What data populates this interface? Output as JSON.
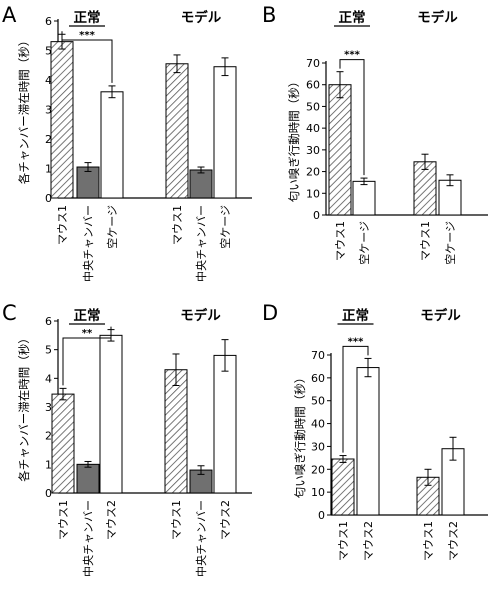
{
  "chart_data": [
    {
      "panel": "A",
      "type": "bar",
      "groups": [
        "正常",
        "モデル"
      ],
      "categories": [
        "マウス1",
        "中央チャンバー",
        "空ケージ"
      ],
      "series": [
        {
          "group": "正常",
          "values": [
            5.3,
            1.05,
            3.6
          ],
          "errors": [
            0.25,
            0.15,
            0.2
          ]
        },
        {
          "group": "モデル",
          "values": [
            4.55,
            0.95,
            4.45
          ],
          "errors": [
            0.3,
            0.1,
            0.3
          ]
        }
      ],
      "ylabel": "各チャンバー滞在時間（秒）",
      "ylim": [
        0,
        6
      ],
      "yticks": [
        0,
        1,
        2,
        3,
        4,
        5,
        6
      ],
      "significance": {
        "group": "正常",
        "from": 0,
        "to": 2,
        "label": "***"
      }
    },
    {
      "panel": "B",
      "type": "bar",
      "groups": [
        "正常",
        "モデル"
      ],
      "categories": [
        "マウス1",
        "空ケージ"
      ],
      "series": [
        {
          "group": "正常",
          "values": [
            60,
            15.5
          ],
          "errors": [
            6,
            1.5
          ]
        },
        {
          "group": "モデル",
          "values": [
            24.5,
            16
          ],
          "errors": [
            3.5,
            2.5
          ]
        }
      ],
      "ylabel": "匂い嗅ぎ行動時間（秒）",
      "ylim": [
        0,
        70
      ],
      "yticks": [
        0,
        10,
        20,
        30,
        40,
        50,
        60,
        70
      ],
      "significance": {
        "group": "正常",
        "from": 0,
        "to": 1,
        "label": "***"
      }
    },
    {
      "panel": "C",
      "type": "bar",
      "groups": [
        "正常",
        "モデル"
      ],
      "categories": [
        "マウス1",
        "中央チャンバー",
        "マウス2"
      ],
      "series": [
        {
          "group": "正常",
          "values": [
            3.45,
            1.0,
            5.5
          ],
          "errors": [
            0.2,
            0.1,
            0.2
          ]
        },
        {
          "group": "モデル",
          "values": [
            4.3,
            0.8,
            4.8
          ],
          "errors": [
            0.55,
            0.15,
            0.55
          ]
        }
      ],
      "ylabel": "各チャンバー滞在時間（秒）",
      "ylim": [
        0,
        6
      ],
      "yticks": [
        0,
        1,
        2,
        3,
        4,
        5,
        6
      ],
      "significance": {
        "group": "正常",
        "from": 0,
        "to": 2,
        "label": "**"
      }
    },
    {
      "panel": "D",
      "type": "bar",
      "groups": [
        "正常",
        "モデル"
      ],
      "categories": [
        "マウス1",
        "マウス2"
      ],
      "series": [
        {
          "group": "正常",
          "values": [
            24.5,
            64.5
          ],
          "errors": [
            1.5,
            4
          ]
        },
        {
          "group": "モデル",
          "values": [
            16.5,
            29
          ],
          "errors": [
            3.5,
            5
          ]
        }
      ],
      "ylabel": "匂い嗅ぎ行動時間（秒）",
      "ylim": [
        0,
        70
      ],
      "yticks": [
        0,
        10,
        20,
        30,
        40,
        50,
        60,
        70
      ],
      "significance": {
        "group": "正常",
        "from": 0,
        "to": 1,
        "label": "***"
      }
    }
  ],
  "colors": {
    "hatch": "#555555",
    "gray": "#707070",
    "white": "#ffffff",
    "stroke": "#000000"
  }
}
